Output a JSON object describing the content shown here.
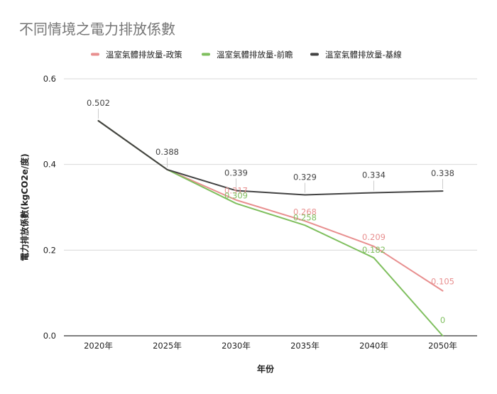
{
  "chart_data": {
    "type": "line",
    "title": "不同情境之電力排放係數",
    "xlabel": "年份",
    "ylabel": "電力排放係數(kgCO2e/度)",
    "categories": [
      "2020年",
      "2025年",
      "2030年",
      "2035年",
      "2040年",
      "2050年"
    ],
    "ylim": [
      0,
      0.6
    ],
    "yticks": [
      "0.0",
      "0.2",
      "0.4",
      "0.6"
    ],
    "grid": true,
    "legend_position": "top",
    "series": [
      {
        "name": "溫室氣體排放量-政策",
        "color": "#e88f8f",
        "values": [
          0.502,
          0.388,
          0.317,
          0.268,
          0.209,
          0.105
        ],
        "labels": [
          "",
          "",
          "0.317",
          "0.268",
          "0.209",
          "0.105"
        ]
      },
      {
        "name": "溫室氣體排放量-前瞻",
        "color": "#7fbf5e",
        "values": [
          0.502,
          0.388,
          0.309,
          0.258,
          0.182,
          0
        ],
        "labels": [
          "",
          "",
          "0.309",
          "0.258",
          "0.182",
          "0"
        ]
      },
      {
        "name": "溫室氣體排放量-基線",
        "color": "#434343",
        "values": [
          0.502,
          0.388,
          0.339,
          0.329,
          0.334,
          0.338
        ],
        "labels": [
          "0.502",
          "0.388",
          "0.339",
          "0.329",
          "0.334",
          "0.338"
        ]
      }
    ]
  }
}
